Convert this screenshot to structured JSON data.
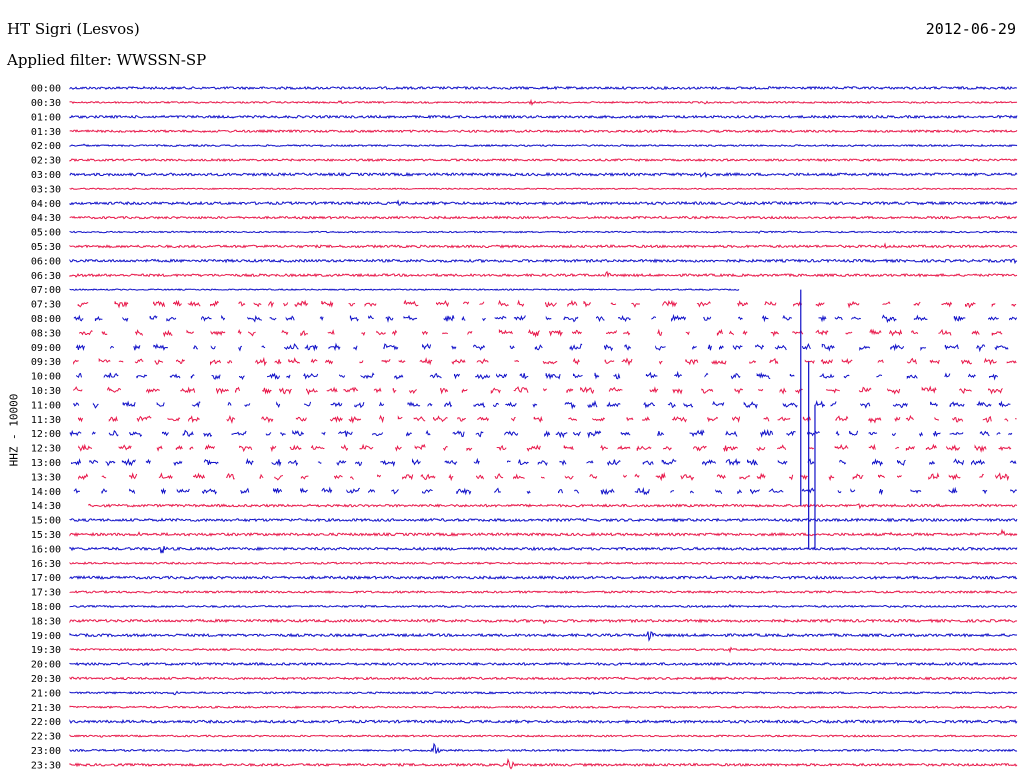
{
  "header": {
    "station": "HT Sigri (Lesvos)",
    "date": "2012-06-29",
    "filter": "Applied filter: WWSSN-SP",
    "channel": "HHZ - 10000"
  },
  "colors": {
    "even": "#1010c8",
    "odd": "#e8184a"
  },
  "chart_data": {
    "type": "line",
    "title": "HT Sigri (Lesvos)",
    "ylabel": "HHZ - 10000",
    "x": {
      "unit": "minutes",
      "range": [
        0,
        30
      ]
    },
    "rows": [
      {
        "label": "00:00",
        "amp": 1.2,
        "noisy": false,
        "events": []
      },
      {
        "label": "00:30",
        "amp": 0.8,
        "noisy": false,
        "events": [
          {
            "x": 8.5,
            "a": 3
          },
          {
            "x": 14.6,
            "a": 3
          },
          {
            "x": 20.1,
            "a": 2
          }
        ]
      },
      {
        "label": "01:00",
        "amp": 1.2,
        "noisy": false,
        "events": []
      },
      {
        "label": "01:30",
        "amp": 1.1,
        "noisy": false,
        "events": []
      },
      {
        "label": "02:00",
        "amp": 0.8,
        "noisy": false,
        "events": [
          {
            "x": 0.4,
            "a": 2
          },
          {
            "x": 28.8,
            "a": 2
          }
        ]
      },
      {
        "label": "02:30",
        "amp": 1.0,
        "noisy": false,
        "events": []
      },
      {
        "label": "03:00",
        "amp": 1.3,
        "noisy": false,
        "events": [
          {
            "x": 20.0,
            "a": 9
          }
        ]
      },
      {
        "label": "03:30",
        "amp": 0.6,
        "noisy": false,
        "events": []
      },
      {
        "label": "04:00",
        "amp": 1.3,
        "noisy": false,
        "events": [
          {
            "x": 10.4,
            "a": 3
          }
        ]
      },
      {
        "label": "04:30",
        "amp": 1.1,
        "noisy": false,
        "events": []
      },
      {
        "label": "05:00",
        "amp": 0.7,
        "noisy": false,
        "events": [
          {
            "x": 13.7,
            "a": 2
          },
          {
            "x": 21.8,
            "a": 2
          },
          {
            "x": 27.5,
            "a": 2
          }
        ]
      },
      {
        "label": "05:30",
        "amp": 1.2,
        "noisy": false,
        "events": [
          {
            "x": 5.8,
            "a": 3
          },
          {
            "x": 25.8,
            "a": 3
          }
        ]
      },
      {
        "label": "06:00",
        "amp": 1.3,
        "noisy": false,
        "events": [
          {
            "x": 29.9,
            "a": 3
          }
        ]
      },
      {
        "label": "06:30",
        "amp": 1.2,
        "noisy": false,
        "events": [
          {
            "x": 0.2,
            "a": 3
          },
          {
            "x": 17.0,
            "a": 4
          }
        ]
      },
      {
        "label": "07:00",
        "amp": 0.6,
        "noisy": false,
        "events": [],
        "end": 21.2
      },
      {
        "label": "07:30",
        "amp": 0,
        "noisy": true,
        "events": []
      },
      {
        "label": "08:00",
        "amp": 0,
        "noisy": true,
        "events": []
      },
      {
        "label": "08:30",
        "amp": 0,
        "noisy": true,
        "events": []
      },
      {
        "label": "09:00",
        "amp": 0,
        "noisy": true,
        "events": []
      },
      {
        "label": "09:30",
        "amp": 0,
        "noisy": true,
        "events": []
      },
      {
        "label": "10:00",
        "amp": 0,
        "noisy": true,
        "events": []
      },
      {
        "label": "10:30",
        "amp": 0,
        "noisy": true,
        "events": []
      },
      {
        "label": "11:00",
        "amp": 0,
        "noisy": true,
        "events": []
      },
      {
        "label": "11:30",
        "amp": 0,
        "noisy": true,
        "events": []
      },
      {
        "label": "12:00",
        "amp": 0,
        "noisy": true,
        "events": []
      },
      {
        "label": "12:30",
        "amp": 0,
        "noisy": true,
        "events": []
      },
      {
        "label": "13:00",
        "amp": 0,
        "noisy": true,
        "events": []
      },
      {
        "label": "13:30",
        "amp": 0,
        "noisy": true,
        "events": []
      },
      {
        "label": "14:00",
        "amp": 0,
        "noisy": true,
        "events": []
      },
      {
        "label": "14:30",
        "amp": 1.2,
        "noisy": false,
        "events": [
          {
            "x": 25.0,
            "a": 3
          }
        ],
        "start": 0.6
      },
      {
        "label": "15:00",
        "amp": 1.3,
        "noisy": false,
        "events": []
      },
      {
        "label": "15:30",
        "amp": 1.3,
        "noisy": false,
        "events": [
          {
            "x": 2.2,
            "a": 3
          },
          {
            "x": 26.0,
            "a": 2
          },
          {
            "x": 29.5,
            "a": 7
          }
        ]
      },
      {
        "label": "16:00",
        "amp": 1.3,
        "noisy": false,
        "events": [
          {
            "x": 2.9,
            "a": 7
          }
        ]
      },
      {
        "label": "16:30",
        "amp": 0.9,
        "noisy": false,
        "events": []
      },
      {
        "label": "17:00",
        "amp": 1.3,
        "noisy": false,
        "events": []
      },
      {
        "label": "17:30",
        "amp": 1.0,
        "noisy": false,
        "events": []
      },
      {
        "label": "18:00",
        "amp": 0.9,
        "noisy": false,
        "events": [
          {
            "x": 20.9,
            "a": 2
          }
        ]
      },
      {
        "label": "18:30",
        "amp": 1.3,
        "noisy": false,
        "events": [
          {
            "x": 15.0,
            "a": 3
          }
        ]
      },
      {
        "label": "19:00",
        "amp": 1.3,
        "noisy": false,
        "events": [
          {
            "x": 18.3,
            "a": 9
          }
        ]
      },
      {
        "label": "19:30",
        "amp": 0.9,
        "noisy": false,
        "events": [
          {
            "x": 20.9,
            "a": 3
          }
        ]
      },
      {
        "label": "20:00",
        "amp": 1.2,
        "noisy": false,
        "events": []
      },
      {
        "label": "20:30",
        "amp": 1.1,
        "noisy": false,
        "events": []
      },
      {
        "label": "21:00",
        "amp": 0.9,
        "noisy": false,
        "events": [
          {
            "x": 3.3,
            "a": 3
          },
          {
            "x": 16.5,
            "a": 3
          }
        ]
      },
      {
        "label": "21:30",
        "amp": 0.9,
        "noisy": false,
        "events": [
          {
            "x": 6.6,
            "a": 2
          }
        ]
      },
      {
        "label": "22:00",
        "amp": 1.3,
        "noisy": false,
        "events": []
      },
      {
        "label": "22:30",
        "amp": 0.8,
        "noisy": false,
        "events": [
          {
            "x": 1.0,
            "a": 2
          },
          {
            "x": 26.2,
            "a": 2
          }
        ]
      },
      {
        "label": "23:00",
        "amp": 0.9,
        "noisy": false,
        "events": [
          {
            "x": 11.5,
            "a": 9
          }
        ]
      },
      {
        "label": "23:30",
        "amp": 1.2,
        "noisy": false,
        "events": [
          {
            "x": 13.9,
            "a": 9
          }
        ]
      }
    ],
    "spikes": [
      {
        "row": "09:00",
        "x": 23.15,
        "up": 4,
        "down": 11
      },
      {
        "row": "10:00",
        "x": 23.4,
        "up": 1,
        "down": 12
      },
      {
        "row": "11:30",
        "x": 23.6,
        "up": 1,
        "down": 9
      }
    ]
  }
}
